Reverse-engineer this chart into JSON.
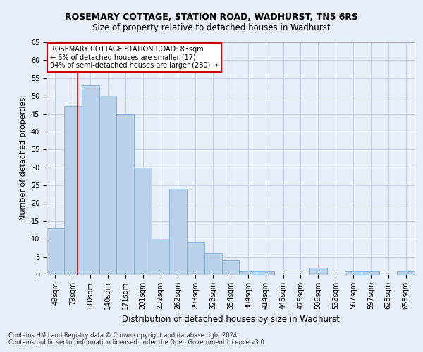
{
  "title": "ROSEMARY COTTAGE, STATION ROAD, WADHURST, TN5 6RS",
  "subtitle": "Size of property relative to detached houses in Wadhurst",
  "xlabel": "Distribution of detached houses by size in Wadhurst",
  "ylabel": "Number of detached properties",
  "categories": [
    "49sqm",
    "79sqm",
    "110sqm",
    "140sqm",
    "171sqm",
    "201sqm",
    "232sqm",
    "262sqm",
    "293sqm",
    "323sqm",
    "354sqm",
    "384sqm",
    "414sqm",
    "445sqm",
    "475sqm",
    "506sqm",
    "536sqm",
    "567sqm",
    "597sqm",
    "628sqm",
    "658sqm"
  ],
  "values": [
    13,
    47,
    53,
    50,
    45,
    30,
    10,
    24,
    9,
    6,
    4,
    1,
    1,
    0,
    0,
    2,
    0,
    1,
    1,
    0,
    1
  ],
  "bar_color": "#b8d0e8",
  "bar_edge_color": "#7bafd4",
  "grid_color": "#c8d4e4",
  "background_color": "#e8eef8",
  "red_line_x": 1.27,
  "annotation_title": "ROSEMARY COTTAGE STATION ROAD: 83sqm",
  "annotation_line1": "← 6% of detached houses are smaller (17)",
  "annotation_line2": "94% of semi-detached houses are larger (280) →",
  "annotation_box_color": "#ffffff",
  "annotation_border_color": "#cc0000",
  "red_line_color": "#cc0000",
  "footer1": "Contains HM Land Registry data © Crown copyright and database right 2024.",
  "footer2": "Contains public sector information licensed under the Open Government Licence v3.0.",
  "ylim": [
    0,
    65
  ],
  "yticks": [
    0,
    5,
    10,
    15,
    20,
    25,
    30,
    35,
    40,
    45,
    50,
    55,
    60,
    65
  ],
  "title_fontsize": 9,
  "subtitle_fontsize": 8.5,
  "xlabel_fontsize": 8.5,
  "ylabel_fontsize": 8,
  "tick_fontsize": 7,
  "annotation_fontsize": 7,
  "footer_fontsize": 6
}
